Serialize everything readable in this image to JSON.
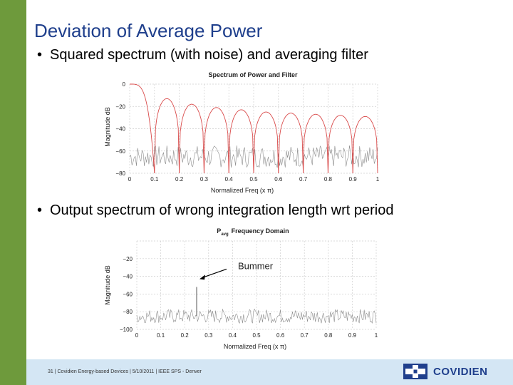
{
  "slide": {
    "title": "Deviation of Average Power",
    "bullet_1": "Squared spectrum (with noise) and averaging filter",
    "bullet_2": "Output spectrum of wrong integration length wrt period",
    "bullet_marker": "•"
  },
  "footer": {
    "text": "31 | Covidien Energy-based Devices | 5/10/2011 | IEEE SPS - Denver",
    "logo_text": "COVIDIEN"
  },
  "colors": {
    "sidebar": "#6e9a3c",
    "title": "#1f3f8c",
    "filter_line": "#d94a4a",
    "noise_line": "#8c8c8c",
    "footer_bg": "#d4e6f4"
  },
  "chart_data": [
    {
      "type": "line",
      "title": "Spectrum of Power and Filter",
      "xlabel": "Normalized Freq (x π)",
      "ylabel": "Magnitude dB",
      "xlim": [
        0,
        1
      ],
      "ylim": [
        -80,
        0
      ],
      "x_ticks": [
        "0",
        "0.1",
        "0.2",
        "0.3",
        "0.4",
        "0.5",
        "0.6",
        "0.7",
        "0.8",
        "0.9",
        "1"
      ],
      "y_ticks": [
        "0",
        "−20",
        "−40",
        "−60",
        "−80"
      ],
      "grid": true,
      "series": [
        {
          "style": "averaging filter (sinc response)",
          "x": [
            0,
            0.1,
            0.2,
            0.3,
            0.4,
            0.5,
            0.6,
            0.7,
            0.8,
            0.9,
            1
          ],
          "peak_x": [
            0,
            0.15,
            0.25,
            0.35,
            0.45,
            0.55,
            0.65,
            0.75,
            0.85,
            0.95
          ],
          "peak_y": [
            0,
            -13,
            -18,
            -21,
            -23,
            -25,
            -26,
            -27,
            -28,
            -29
          ],
          "null_x": [
            0.1,
            0.2,
            0.3,
            0.4,
            0.5,
            0.6,
            0.7,
            0.8,
            0.9
          ],
          "null_y": -80
        },
        {
          "style": "noise spectrum",
          "level_y": -65,
          "spread_y": 10
        }
      ]
    },
    {
      "type": "line",
      "title": "P",
      "title_sub": "avg",
      "title_rest": "Frequency Domain",
      "xlabel": "Normalized Freq (x π)",
      "ylabel": "Magnitude dB",
      "xlim": [
        0,
        1
      ],
      "ylim": [
        -100,
        0
      ],
      "x_ticks": [
        "0",
        "0.1",
        "0.2",
        "0.3",
        "0.4",
        "0.5",
        "0.6",
        "0.7",
        "0.8",
        "0.9",
        "1"
      ],
      "y_ticks": [
        "",
        "−20",
        "−40",
        "−60",
        "−80",
        "−100"
      ],
      "grid": true,
      "annotation": {
        "text": "Bummer",
        "x": 0.25,
        "y": -35
      },
      "series": [
        {
          "style": "output noise spectrum",
          "level_y": -85,
          "spread_y": 8,
          "spike_x": 0.25,
          "spike_y": -52
        }
      ]
    }
  ]
}
